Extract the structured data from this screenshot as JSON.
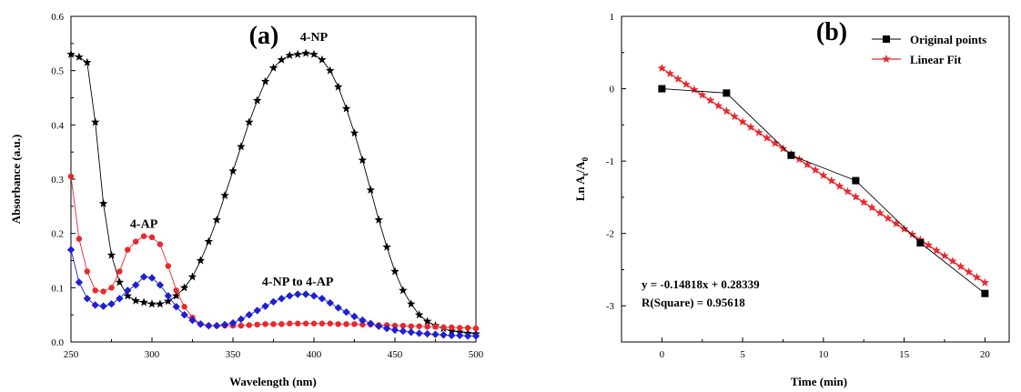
{
  "chart_data": [
    {
      "type": "line",
      "panel_label": "(a)",
      "xlabel": "Wavelength (nm)",
      "ylabel": "Absorbance (a.u.)",
      "xlim": [
        250,
        500
      ],
      "ylim": [
        0.0,
        0.6
      ],
      "x_ticks": [
        250,
        300,
        350,
        400,
        450,
        500
      ],
      "x_tick_labels": [
        "250",
        "300",
        "350",
        "400",
        "450",
        "500"
      ],
      "y_ticks": [
        0.0,
        0.1,
        0.2,
        0.3,
        0.4,
        0.5,
        0.6
      ],
      "y_tick_labels": [
        "0.0",
        "0.1",
        "0.2",
        "0.3",
        "0.4",
        "0.5",
        "0.6"
      ],
      "annotations": [
        {
          "text": "4-NP",
          "x": 400,
          "y": 0.555
        },
        {
          "text": "4-AP",
          "x": 295,
          "y": 0.21
        },
        {
          "text": "4-NP to 4-AP",
          "x": 390,
          "y": 0.104
        }
      ],
      "series": [
        {
          "color": "#000000",
          "marker": "star",
          "x": [
            250,
            255,
            260,
            265,
            270,
            275,
            280,
            285,
            290,
            295,
            300,
            305,
            310,
            315,
            320,
            325,
            330,
            335,
            340,
            345,
            350,
            355,
            360,
            365,
            370,
            375,
            380,
            385,
            390,
            395,
            400,
            405,
            410,
            415,
            420,
            425,
            430,
            435,
            440,
            445,
            450,
            455,
            460,
            465,
            470,
            475,
            480,
            485,
            490,
            495,
            500
          ],
          "values": [
            0.53,
            0.525,
            0.515,
            0.405,
            0.255,
            0.16,
            0.11,
            0.085,
            0.076,
            0.073,
            0.07,
            0.07,
            0.075,
            0.085,
            0.1,
            0.12,
            0.15,
            0.185,
            0.225,
            0.27,
            0.315,
            0.36,
            0.405,
            0.445,
            0.48,
            0.505,
            0.52,
            0.528,
            0.53,
            0.532,
            0.53,
            0.52,
            0.5,
            0.47,
            0.43,
            0.385,
            0.335,
            0.28,
            0.225,
            0.175,
            0.13,
            0.095,
            0.07,
            0.05,
            0.038,
            0.03,
            0.025,
            0.02,
            0.018,
            0.016,
            0.015
          ]
        },
        {
          "color": "#e8282d",
          "marker": "circle",
          "x": [
            250,
            255,
            260,
            265,
            270,
            275,
            280,
            285,
            290,
            295,
            300,
            305,
            310,
            315,
            320,
            325,
            330,
            335,
            340,
            345,
            350,
            355,
            360,
            365,
            370,
            375,
            380,
            385,
            390,
            395,
            400,
            405,
            410,
            415,
            420,
            425,
            430,
            435,
            440,
            445,
            450,
            455,
            460,
            465,
            470,
            475,
            480,
            485,
            490,
            495,
            500
          ],
          "values": [
            0.305,
            0.19,
            0.13,
            0.095,
            0.093,
            0.1,
            0.13,
            0.17,
            0.185,
            0.195,
            0.193,
            0.18,
            0.14,
            0.095,
            0.065,
            0.045,
            0.033,
            0.03,
            0.03,
            0.03,
            0.03,
            0.03,
            0.031,
            0.032,
            0.033,
            0.033,
            0.033,
            0.034,
            0.034,
            0.034,
            0.034,
            0.034,
            0.034,
            0.033,
            0.033,
            0.033,
            0.032,
            0.032,
            0.031,
            0.031,
            0.03,
            0.03,
            0.029,
            0.029,
            0.028,
            0.028,
            0.027,
            0.027,
            0.026,
            0.026,
            0.025
          ]
        },
        {
          "color": "#1f1fd6",
          "marker": "diamond",
          "x": [
            250,
            255,
            260,
            265,
            270,
            275,
            280,
            285,
            290,
            295,
            300,
            305,
            310,
            315,
            320,
            325,
            330,
            335,
            340,
            345,
            350,
            355,
            360,
            365,
            370,
            375,
            380,
            385,
            390,
            395,
            400,
            405,
            410,
            415,
            420,
            425,
            430,
            435,
            440,
            445,
            450,
            455,
            460,
            465,
            470,
            475,
            480,
            485,
            490,
            495,
            500
          ],
          "values": [
            0.17,
            0.11,
            0.08,
            0.068,
            0.066,
            0.07,
            0.08,
            0.095,
            0.105,
            0.12,
            0.118,
            0.105,
            0.085,
            0.065,
            0.05,
            0.04,
            0.033,
            0.03,
            0.03,
            0.032,
            0.035,
            0.042,
            0.05,
            0.058,
            0.066,
            0.074,
            0.08,
            0.085,
            0.088,
            0.088,
            0.085,
            0.08,
            0.072,
            0.063,
            0.055,
            0.047,
            0.04,
            0.034,
            0.029,
            0.025,
            0.022,
            0.02,
            0.018,
            0.016,
            0.015,
            0.014,
            0.013,
            0.012,
            0.012,
            0.011,
            0.011
          ]
        }
      ]
    },
    {
      "type": "line",
      "panel_label": "(b)",
      "xlabel": "Time (min)",
      "ylabel_main": "Ln A",
      "ylabel_sub1": "t",
      "ylabel_mid": "/A",
      "ylabel_sub2": "0",
      "xlim": [
        -2.5,
        21.5
      ],
      "ylim": [
        -3.5,
        1.0
      ],
      "x_ticks": [
        0,
        5,
        10,
        15,
        20
      ],
      "x_tick_labels": [
        "0",
        "5",
        "10",
        "15",
        "20"
      ],
      "y_ticks": [
        -3,
        -2,
        -1,
        0,
        1
      ],
      "y_tick_labels": [
        "-3",
        "-2",
        "-1",
        "0",
        "1"
      ],
      "legend": {
        "placement": "top-right",
        "entries": [
          "Original points",
          "Linear Fit"
        ]
      },
      "equation_text": "y = -0.14818x + 0.28339",
      "r_square_text": "R(Square) = 0.95618",
      "series": [
        {
          "name": "Original points",
          "color": "#000000",
          "marker": "square",
          "x": [
            0,
            4,
            8,
            12,
            16,
            20
          ],
          "values": [
            0.0,
            -0.06,
            -0.92,
            -1.27,
            -2.13,
            -2.83
          ]
        },
        {
          "name": "Linear Fit",
          "color": "#e8282d",
          "marker": "star",
          "slope": -0.14818,
          "intercept": 0.28339,
          "x_range": [
            0,
            20
          ]
        }
      ]
    }
  ]
}
